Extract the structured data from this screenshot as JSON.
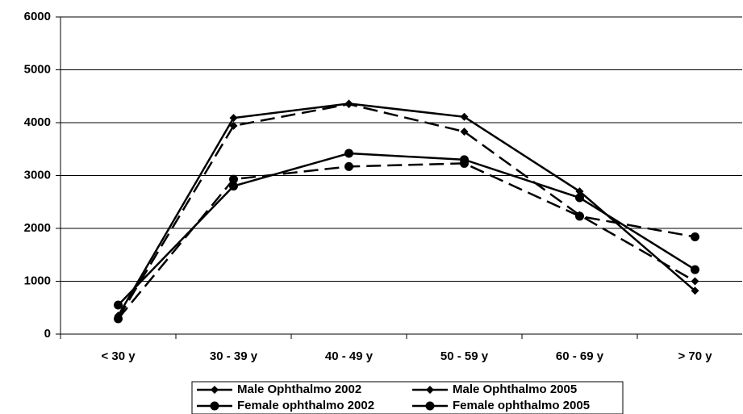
{
  "chart_data": {
    "type": "line",
    "categories": [
      "< 30 y",
      "30 - 39 y",
      "40 - 49 y",
      "50 - 59 y",
      "60 - 69 y",
      "> 70 y"
    ],
    "series": [
      {
        "name": "Male Ophthalmo 2002",
        "color": "#000000",
        "dashed": false,
        "marker": "diamond",
        "values": [
          350,
          4090,
          4360,
          4110,
          2700,
          820
        ]
      },
      {
        "name": "Male Ophthalmo 2005",
        "color": "#000000",
        "dashed": true,
        "marker": "diamond",
        "values": [
          300,
          3940,
          4350,
          3830,
          2250,
          1000
        ]
      },
      {
        "name": "Female ophthalmo 2002",
        "color": "#000000",
        "dashed": false,
        "marker": "circle",
        "values": [
          550,
          2800,
          3420,
          3300,
          2580,
          1220
        ]
      },
      {
        "name": "Female ophthalmo 2005",
        "color": "#000000",
        "dashed": true,
        "marker": "circle",
        "values": [
          290,
          2930,
          3170,
          3230,
          2230,
          1840
        ]
      }
    ],
    "ylim": [
      0,
      6000
    ],
    "yticks": [
      0,
      1000,
      2000,
      3000,
      4000,
      5000,
      6000
    ],
    "grid": true,
    "legend": "bottom"
  }
}
